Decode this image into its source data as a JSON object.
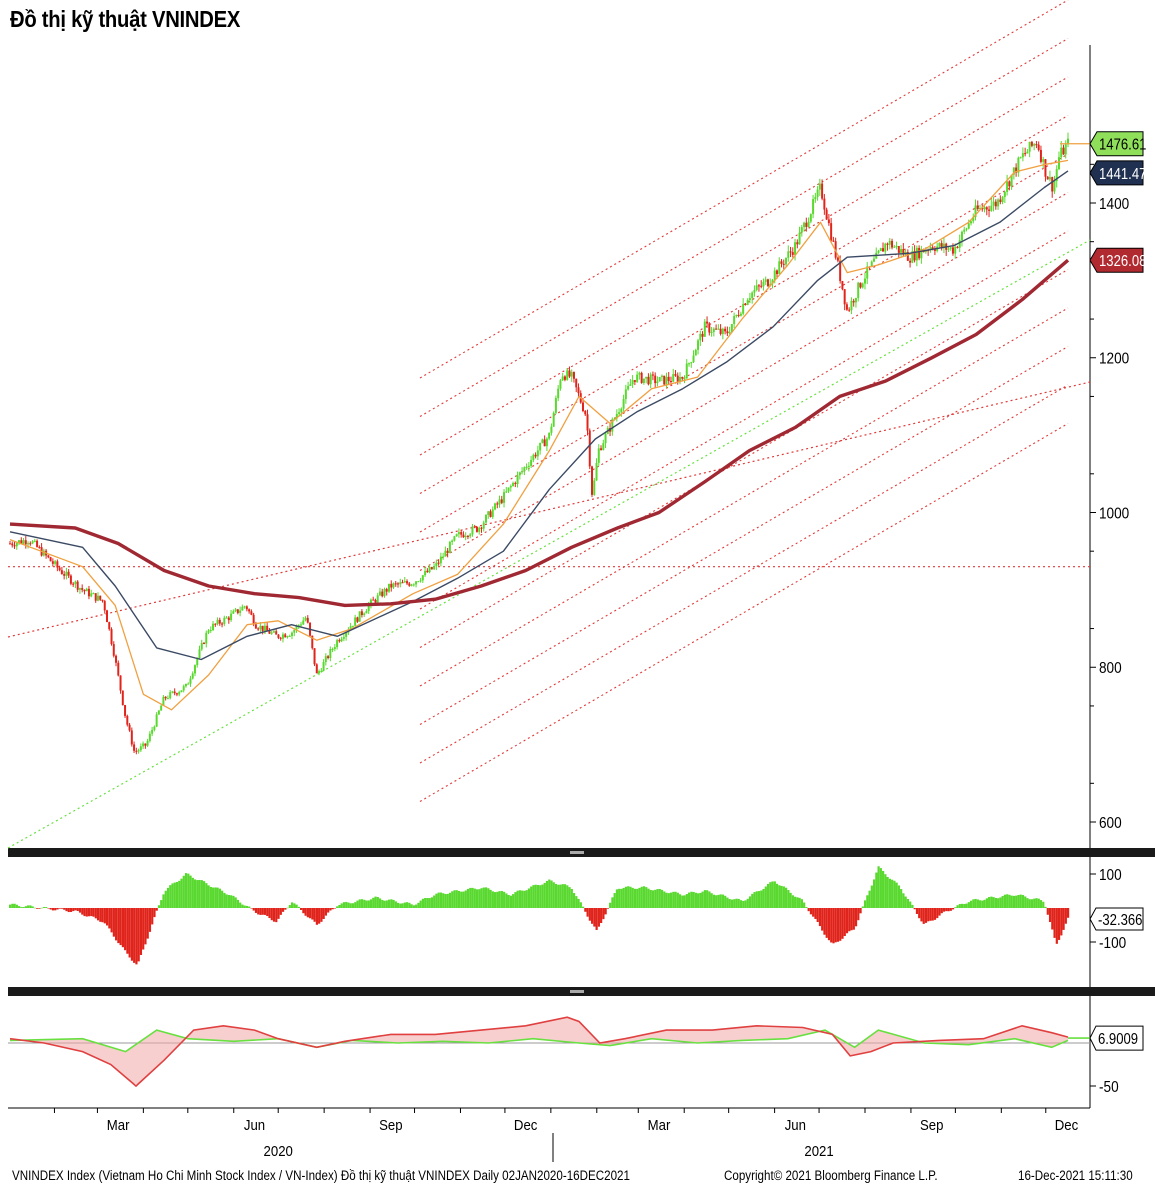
{
  "title": "Đồ thị kỹ thuật VNINDEX",
  "footer": {
    "description": "VNINDEX Index (Vietnam Ho Chi Minh Stock Index / VN-Index) Đồ thị kỹ thuật VNINDEX  Daily 02JAN2020-16DEC2021",
    "copyright": "Copyright© 2021 Bloomberg Finance L.P.",
    "timestamp": "16-Dec-2021 15:11:30"
  },
  "colors": {
    "up_candle": "#59d92f",
    "down_candle": "#e0241b",
    "ma_fast": "#f0a040",
    "ma_mid": "#3b4a64",
    "ma_slow": "#a02832",
    "trend_green": "#68e040",
    "trend_red": "#e03a3a",
    "macd_line": "#e04040",
    "signal_line": "#68e040",
    "last_price_bg": "#8fdf5a",
    "ma_mid_badge": "#1f3050",
    "ma_slow_badge": "#b02a30"
  },
  "chart_data": [
    {
      "type": "line",
      "panel": "price",
      "style": "candlestick with moving averages and trend channels",
      "x_axis": {
        "month_ticks": [
          "Mar",
          "Jun",
          "Sep",
          "Dec",
          "Mar",
          "Jun",
          "Sep",
          "Dec"
        ],
        "year_labels": [
          "2020",
          "2021"
        ]
      },
      "y_axis": {
        "ticks": [
          "600",
          "800",
          "1000",
          "1200",
          "1400"
        ],
        "ylim": [
          550,
          1560
        ],
        "position": "right"
      },
      "series": [
        {
          "role": "index_close",
          "x": [
            "2020-01-02",
            "2020-01-15",
            "2020-02-05",
            "2020-02-20",
            "2020-03-05",
            "2020-03-12",
            "2020-03-20",
            "2020-03-26",
            "2020-04-03",
            "2020-04-15",
            "2020-04-30",
            "2020-05-15",
            "2020-05-29",
            "2020-06-09",
            "2020-06-16",
            "2020-06-30",
            "2020-07-10",
            "2020-07-20",
            "2020-07-27",
            "2020-08-10",
            "2020-08-31",
            "2020-09-15",
            "2020-09-30",
            "2020-10-15",
            "2020-10-30",
            "2020-11-13",
            "2020-11-30",
            "2020-12-15",
            "2020-12-31",
            "2021-01-08",
            "2021-01-15",
            "2021-01-25",
            "2021-01-29",
            "2021-02-02",
            "2021-02-10",
            "2021-02-26",
            "2021-03-15",
            "2021-03-31",
            "2021-04-15",
            "2021-04-29",
            "2021-05-14",
            "2021-05-28",
            "2021-06-15",
            "2021-06-30",
            "2021-07-02",
            "2021-07-12",
            "2021-07-20",
            "2021-07-30",
            "2021-08-16",
            "2021-08-31",
            "2021-09-15",
            "2021-09-30",
            "2021-10-15",
            "2021-10-29",
            "2021-11-15",
            "2021-11-25",
            "2021-12-01",
            "2021-12-06",
            "2021-12-10",
            "2021-12-16"
          ],
          "values": [
            960,
            965,
            925,
            900,
            885,
            820,
            735,
            690,
            700,
            760,
            775,
            850,
            865,
            880,
            855,
            840,
            845,
            865,
            790,
            835,
            880,
            905,
            910,
            930,
            970,
            980,
            1020,
            1060,
            1100,
            1180,
            1175,
            1125,
            1020,
            1080,
            1110,
            1175,
            1170,
            1175,
            1240,
            1230,
            1280,
            1300,
            1345,
            1410,
            1420,
            1335,
            1260,
            1300,
            1350,
            1330,
            1345,
            1340,
            1390,
            1400,
            1460,
            1480,
            1440,
            1420,
            1460,
            1476.61
          ]
        },
        {
          "role": "ma_fast",
          "x": [
            "2020-01-02",
            "2020-02-20",
            "2020-03-13",
            "2020-04-01",
            "2020-04-20",
            "2020-05-15",
            "2020-06-10",
            "2020-07-01",
            "2020-07-27",
            "2020-08-20",
            "2020-09-30",
            "2020-10-30",
            "2020-11-30",
            "2020-12-31",
            "2021-01-20",
            "2021-02-10",
            "2021-03-10",
            "2021-04-10",
            "2021-05-10",
            "2021-06-10",
            "2021-07-02",
            "2021-07-20",
            "2021-08-10",
            "2021-09-10",
            "2021-10-10",
            "2021-11-10",
            "2021-12-01",
            "2021-12-16"
          ],
          "values": [
            965,
            930,
            880,
            765,
            745,
            790,
            855,
            860,
            835,
            850,
            895,
            920,
            985,
            1080,
            1150,
            1115,
            1160,
            1175,
            1250,
            1320,
            1375,
            1310,
            1320,
            1340,
            1375,
            1440,
            1450,
            1455
          ]
        },
        {
          "role": "ma_mid",
          "x": [
            "2020-01-02",
            "2020-02-20",
            "2020-03-13",
            "2020-04-10",
            "2020-05-10",
            "2020-06-10",
            "2020-07-10",
            "2020-08-10",
            "2020-09-30",
            "2020-10-30",
            "2020-11-30",
            "2020-12-31",
            "2021-01-31",
            "2021-02-28",
            "2021-03-31",
            "2021-04-30",
            "2021-05-31",
            "2021-06-30",
            "2021-07-20",
            "2021-08-31",
            "2021-09-30",
            "2021-10-31",
            "2021-11-30",
            "2021-12-16"
          ],
          "values": [
            975,
            955,
            905,
            825,
            810,
            840,
            855,
            840,
            885,
            915,
            950,
            1030,
            1095,
            1130,
            1160,
            1195,
            1240,
            1300,
            1330,
            1335,
            1345,
            1375,
            1420,
            1441.47
          ]
        },
        {
          "role": "ma_slow",
          "x": [
            "2020-01-02",
            "2020-02-15",
            "2020-03-15",
            "2020-04-15",
            "2020-05-15",
            "2020-06-15",
            "2020-07-15",
            "2020-08-15",
            "2020-09-15",
            "2020-10-15",
            "2020-11-15",
            "2020-12-15",
            "2021-01-15",
            "2021-02-15",
            "2021-03-15",
            "2021-04-15",
            "2021-05-15",
            "2021-06-15",
            "2021-07-15",
            "2021-08-15",
            "2021-09-15",
            "2021-10-15",
            "2021-11-15",
            "2021-12-16"
          ],
          "values": [
            985,
            980,
            960,
            925,
            905,
            895,
            890,
            880,
            882,
            888,
            905,
            925,
            955,
            980,
            1000,
            1040,
            1080,
            1110,
            1150,
            1170,
            1200,
            1230,
            1275,
            1326.08
          ]
        }
      ],
      "price_labels": [
        {
          "role": "last_price",
          "value": "1476.61"
        },
        {
          "role": "ma_mid",
          "value": "1441.47"
        },
        {
          "role": "ma_slow",
          "value": "1326.08"
        }
      ],
      "reference_lines": [
        {
          "type": "horizontal",
          "value": 930,
          "style": "dotted red"
        }
      ],
      "grid": false
    },
    {
      "type": "bar",
      "panel": "histogram",
      "y_axis": {
        "ticks": [
          "100",
          "-100"
        ],
        "ylim": [
          -170,
          150
        ],
        "position": "right"
      },
      "x": [
        "2020-01-02",
        "2020-02-15",
        "2020-03-05",
        "2020-03-20",
        "2020-03-28",
        "2020-04-15",
        "2020-04-30",
        "2020-05-29",
        "2020-06-15",
        "2020-06-30",
        "2020-07-10",
        "2020-07-27",
        "2020-08-10",
        "2020-09-05",
        "2020-09-30",
        "2020-10-15",
        "2020-11-15",
        "2020-12-05",
        "2020-12-31",
        "2021-01-15",
        "2021-02-01",
        "2021-02-15",
        "2021-03-05",
        "2021-03-31",
        "2021-04-15",
        "2021-05-10",
        "2021-06-01",
        "2021-06-20",
        "2021-07-10",
        "2021-07-25",
        "2021-08-10",
        "2021-08-25",
        "2021-09-10",
        "2021-09-25",
        "2021-10-10",
        "2021-11-10",
        "2021-11-30",
        "2021-12-08",
        "2021-12-16"
      ],
      "values": [
        10,
        -10,
        -40,
        -130,
        -170,
        50,
        100,
        40,
        -10,
        -40,
        20,
        -50,
        10,
        30,
        10,
        40,
        60,
        40,
        80,
        60,
        -70,
        60,
        60,
        40,
        50,
        20,
        80,
        20,
        -110,
        -60,
        120,
        60,
        -50,
        -10,
        20,
        40,
        20,
        -110,
        -32.366
      ],
      "last_value_label": "-32.366"
    },
    {
      "type": "line",
      "panel": "oscillator",
      "y_axis": {
        "ticks": [
          "-50"
        ],
        "ylim": [
          -65,
          40
        ],
        "position": "right"
      },
      "series": [
        {
          "role": "oscillator_line",
          "x": [
            "2020-01-02",
            "2020-01-25",
            "2020-02-20",
            "2020-03-10",
            "2020-03-27",
            "2020-04-15",
            "2020-05-05",
            "2020-05-25",
            "2020-06-15",
            "2020-07-01",
            "2020-07-27",
            "2020-08-15",
            "2020-09-15",
            "2020-10-15",
            "2020-11-15",
            "2020-12-15",
            "2021-01-12",
            "2021-01-20",
            "2021-02-03",
            "2021-02-20",
            "2021-03-20",
            "2021-04-20",
            "2021-05-20",
            "2021-06-20",
            "2021-07-10",
            "2021-07-22",
            "2021-08-05",
            "2021-08-20",
            "2021-09-20",
            "2021-10-20",
            "2021-11-15",
            "2021-12-05",
            "2021-12-16"
          ],
          "values": [
            5,
            0,
            -10,
            -25,
            -50,
            -20,
            15,
            20,
            15,
            5,
            -5,
            2,
            10,
            10,
            15,
            20,
            30,
            25,
            0,
            5,
            15,
            15,
            20,
            18,
            10,
            -15,
            -10,
            0,
            3,
            5,
            20,
            12,
            6.9009
          ]
        },
        {
          "role": "signal_line",
          "x": [
            "2020-01-02",
            "2020-02-20",
            "2020-03-20",
            "2020-04-10",
            "2020-05-01",
            "2020-06-01",
            "2020-07-01",
            "2020-07-27",
            "2020-08-20",
            "2020-09-20",
            "2020-10-20",
            "2020-11-20",
            "2020-12-20",
            "2021-01-20",
            "2021-02-10",
            "2021-03-10",
            "2021-04-10",
            "2021-05-10",
            "2021-06-10",
            "2021-07-05",
            "2021-07-25",
            "2021-08-10",
            "2021-09-10",
            "2021-10-10",
            "2021-11-10",
            "2021-12-05",
            "2021-12-16"
          ],
          "values": [
            3,
            5,
            -10,
            15,
            5,
            2,
            5,
            -5,
            3,
            0,
            2,
            0,
            5,
            0,
            -3,
            5,
            0,
            3,
            5,
            15,
            -5,
            15,
            0,
            -2,
            5,
            -5,
            3
          ]
        }
      ],
      "reference_lines": [
        {
          "type": "horizontal",
          "value": 0
        }
      ],
      "last_value_label": "6.9009"
    }
  ]
}
